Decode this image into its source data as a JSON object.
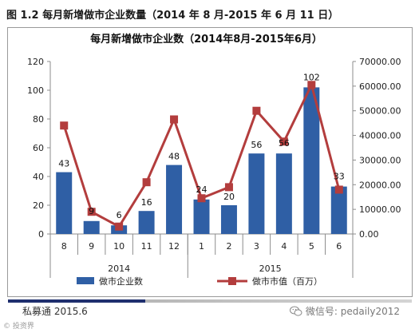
{
  "figure_caption": "图 1.2  每月新增做市企业数量（2014 年 8 月-2015 年 6 月 11 日）",
  "footer": {
    "source": "私募通 2015.6",
    "watermark": "微信号: pedaily2012",
    "bottom_mark": "© 投资界"
  },
  "colors": {
    "bar": "#2f5fa5",
    "line": "#b33d3d"
  },
  "chart_data": {
    "type": "bar",
    "title": "每月新增做市企业数（2014年8月-2015年6月）",
    "categories": [
      "8",
      "9",
      "10",
      "11",
      "12",
      "1",
      "2",
      "3",
      "4",
      "5",
      "6"
    ],
    "year_groups": [
      {
        "label": "2014",
        "count": 5
      },
      {
        "label": "2015",
        "count": 6
      }
    ],
    "series": [
      {
        "name": "做市企业数",
        "type": "bar",
        "axis": "left",
        "values": [
          43,
          9,
          6,
          16,
          48,
          24,
          20,
          56,
          56,
          102,
          33
        ]
      },
      {
        "name": "做市市值（百万）",
        "type": "line",
        "axis": "right",
        "values": [
          44000,
          9000,
          3000,
          21000,
          46500,
          14500,
          19000,
          50000,
          37500,
          60500,
          18000
        ]
      }
    ],
    "left_axis": {
      "min": 0,
      "max": 120,
      "ticks": [
        "0",
        "20",
        "40",
        "60",
        "80",
        "100",
        "120"
      ]
    },
    "right_axis": {
      "min": 0,
      "max": 70000,
      "ticks": [
        "0.00",
        "10000.00",
        "20000.00",
        "30000.00",
        "40000.00",
        "50000.00",
        "60000.00",
        "70000.00"
      ]
    },
    "bar_labels": [
      "43",
      "9",
      "6",
      "16",
      "48",
      "24",
      "20",
      "56",
      "56",
      "102",
      "33"
    ],
    "legend_position": "bottom",
    "grid": false
  }
}
